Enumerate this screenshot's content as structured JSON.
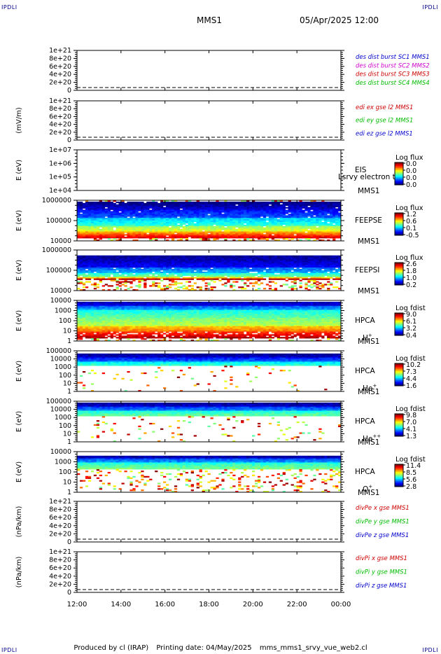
{
  "header": {
    "corner_label": "IPDLI",
    "spacecraft": "MMS1",
    "date": "05/Apr/2025 12:00"
  },
  "footer": {
    "produced_by": "Produced by cl (IRAP)",
    "printing_date": "Printing date: 04/May/2025",
    "script": "mms_mms1_srvy_vue_web2.cl"
  },
  "x_axis": {
    "ticks": [
      "12:00",
      "14:00",
      "16:00",
      "18:00",
      "20:00",
      "22:00",
      "00:00"
    ],
    "range_hours": [
      12,
      24
    ]
  },
  "colors": {
    "black": "#000000",
    "blue": "#0000cc",
    "magenta": "#cc00cc",
    "red": "#cc0000",
    "green": "#00bb00"
  },
  "chart_data": [
    {
      "type": "line",
      "ylabel": "",
      "yticks": [
        "1e+21",
        "8e+20",
        "6e+20",
        "4e+20",
        "2e+20",
        "0"
      ],
      "ylim": [
        0,
        1e+21
      ],
      "zero_line": "dashed",
      "legend": [
        {
          "text": "des dist burst SC1 MMS1",
          "color": "#0000cc"
        },
        {
          "text": "des dist burst SC2 MMS2",
          "color": "#cc00cc"
        },
        {
          "text": "des dist burst SC3 MMS3",
          "color": "#cc0000"
        },
        {
          "text": "des dist burst SC4 MMS4",
          "color": "#00bb00"
        }
      ]
    },
    {
      "type": "line",
      "ylabel": "(mV/m)",
      "yticks": [
        "1e+21",
        "8e+20",
        "6e+20",
        "4e+20",
        "2e+20",
        "0"
      ],
      "ylim": [
        0,
        1e+21
      ],
      "zero_line": "dashed",
      "legend": [
        {
          "text": "edi ex gse l2 MMS1",
          "color": "#cc0000"
        },
        {
          "text": "edi ey gse l2 MMS1",
          "color": "#00bb00"
        },
        {
          "text": "edi ez gse l2 MMS1",
          "color": "#0000cc"
        }
      ]
    },
    {
      "type": "heatmap",
      "ylabel": "E (eV)",
      "yticks": [
        "1e+07",
        "1e+06",
        "1e+05",
        "1e+04"
      ],
      "scale": "log",
      "instrument": [
        "EIS",
        "MMS1"
      ],
      "overlay_text": "Lsrvy electron to",
      "colorbar": {
        "title": "Log flux",
        "ticks": [
          "0.0",
          "0.0",
          "0.0",
          "0.0"
        ]
      },
      "spectrum": "empty"
    },
    {
      "type": "heatmap",
      "ylabel": "E (eV)",
      "yticks": [
        "1000000",
        "100000",
        "10000"
      ],
      "scale": "log",
      "instrument": [
        "FEEPSE",
        "MMS1"
      ],
      "colorbar": {
        "title": "Log flux",
        "ticks": [
          "1.2",
          "0.6",
          "0.1",
          "-0.5"
        ]
      },
      "spectrum": "feepse"
    },
    {
      "type": "heatmap",
      "ylabel": "E (eV)",
      "yticks": [
        "1000000",
        "100000",
        "10000"
      ],
      "scale": "log",
      "instrument": [
        "FEEPSI",
        "MMS1"
      ],
      "colorbar": {
        "title": "Log flux",
        "ticks": [
          "2.6",
          "1.8",
          "1.0",
          "0.2"
        ]
      },
      "spectrum": "feepsi"
    },
    {
      "type": "heatmap",
      "ylabel": "E (eV)",
      "yticks": [
        "10000",
        "1000",
        "100",
        "10",
        "1"
      ],
      "scale": "log",
      "instrument": [
        "HPCA",
        "MMS1"
      ],
      "species": "H",
      "species_sup": "+",
      "colorbar": {
        "title": "Log fdist",
        "ticks": [
          "9.0",
          "6.1",
          "3.2",
          "0.4"
        ]
      },
      "spectrum": "hplus"
    },
    {
      "type": "heatmap",
      "ylabel": "E (eV)",
      "yticks": [
        "100000",
        "10000",
        "1000",
        "100",
        "10",
        "1"
      ],
      "scale": "log",
      "instrument": [
        "HPCA",
        "MMS1"
      ],
      "species": "He",
      "species_sup": "+",
      "colorbar": {
        "title": "Log fdist",
        "ticks": [
          "10.2",
          "7.3",
          "4.4",
          "1.6"
        ]
      },
      "spectrum": "heplus"
    },
    {
      "type": "heatmap",
      "ylabel": "E (eV)",
      "yticks": [
        "100000",
        "10000",
        "1000",
        "100",
        "10",
        "1"
      ],
      "scale": "log",
      "instrument": [
        "HPCA",
        "MMS1"
      ],
      "species": "He",
      "species_sup": "++",
      "colorbar": {
        "title": "Log fdist",
        "ticks": [
          "9.8",
          "7.0",
          "4.1",
          "1.3"
        ]
      },
      "spectrum": "heplusplus"
    },
    {
      "type": "heatmap",
      "ylabel": "E (eV)",
      "yticks": [
        "10000",
        "1000",
        "100",
        "10",
        "1"
      ],
      "scale": "log",
      "instrument": [
        "HPCA",
        "MMS1"
      ],
      "species": "O",
      "species_sup": "+",
      "colorbar": {
        "title": "Log fdist",
        "ticks": [
          "11.4",
          "8.5",
          "5.6",
          "2.8"
        ]
      },
      "spectrum": "oplus"
    },
    {
      "type": "line",
      "ylabel": "(nPa/km)",
      "yticks": [
        "1e+21",
        "8e+20",
        "6e+20",
        "4e+20",
        "2e+20",
        "0"
      ],
      "ylim": [
        0,
        1e+21
      ],
      "zero_line": "dashed",
      "legend": [
        {
          "text": "divPe x gse MMS1",
          "color": "#cc0000"
        },
        {
          "text": "divPe y gse MMS1",
          "color": "#00bb00"
        },
        {
          "text": "divPe z gse MMS1",
          "color": "#0000cc"
        }
      ]
    },
    {
      "type": "line",
      "ylabel": "(nPa/km)",
      "yticks": [
        "1e+21",
        "8e+20",
        "6e+20",
        "4e+20",
        "2e+20",
        "0"
      ],
      "ylim": [
        0,
        1e+21
      ],
      "zero_line": "dashed",
      "legend": [
        {
          "text": "divPi x gse MMS1",
          "color": "#cc0000"
        },
        {
          "text": "divPi y gse MMS1",
          "color": "#00bb00"
        },
        {
          "text": "divPi z gse MMS1",
          "color": "#0000cc"
        }
      ]
    }
  ]
}
